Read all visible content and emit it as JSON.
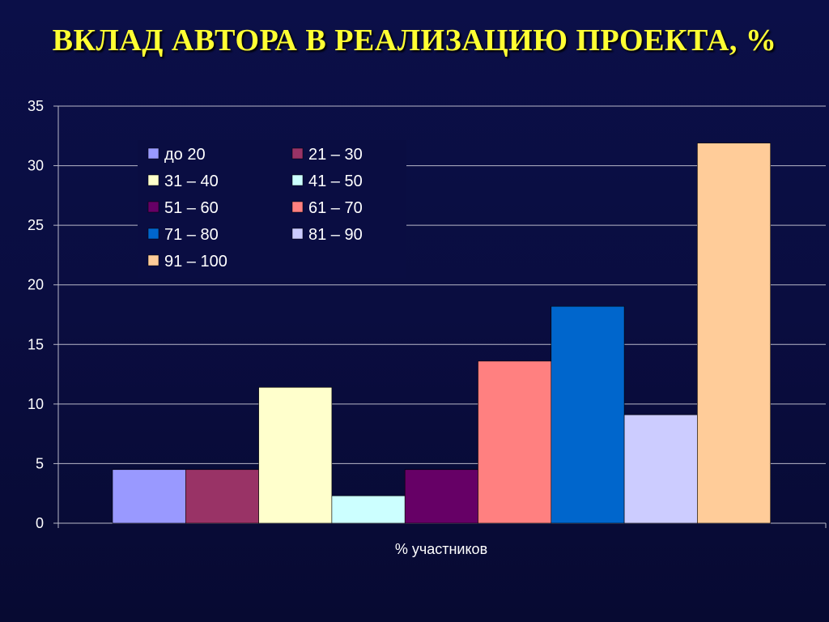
{
  "slide": {
    "title": "ВКЛАД АВТОРА В РЕАЛИЗАЦИЮ ПРОЕКТА, %"
  },
  "chart_data": {
    "type": "bar",
    "title": "ВКЛАД АВТОРА В РЕАЛИЗАЦИЮ ПРОЕКТА, %",
    "xlabel": "% участников",
    "ylabel": "",
    "ylim": [
      0,
      35
    ],
    "yticks": [
      0,
      5,
      10,
      15,
      20,
      25,
      30,
      35
    ],
    "grid": true,
    "legend_placement": "top-left",
    "categories": [
      "% участников"
    ],
    "series": [
      {
        "name": "до 20",
        "values": [
          4.5
        ],
        "color": "#9999ff"
      },
      {
        "name": "21 – 30",
        "values": [
          4.5
        ],
        "color": "#993366"
      },
      {
        "name": "31 – 40",
        "values": [
          11.4
        ],
        "color": "#ffffcc"
      },
      {
        "name": "41 – 50",
        "values": [
          2.3
        ],
        "color": "#ccffff"
      },
      {
        "name": "51 – 60",
        "values": [
          4.5
        ],
        "color": "#660066"
      },
      {
        "name": "61 – 70",
        "values": [
          13.6
        ],
        "color": "#ff8080"
      },
      {
        "name": "71 – 80",
        "values": [
          18.2
        ],
        "color": "#0066cc"
      },
      {
        "name": "81 – 90",
        "values": [
          9.1
        ],
        "color": "#ccccff"
      },
      {
        "name": "91 – 100",
        "values": [
          31.9
        ],
        "color": "#ffcc99"
      }
    ]
  }
}
